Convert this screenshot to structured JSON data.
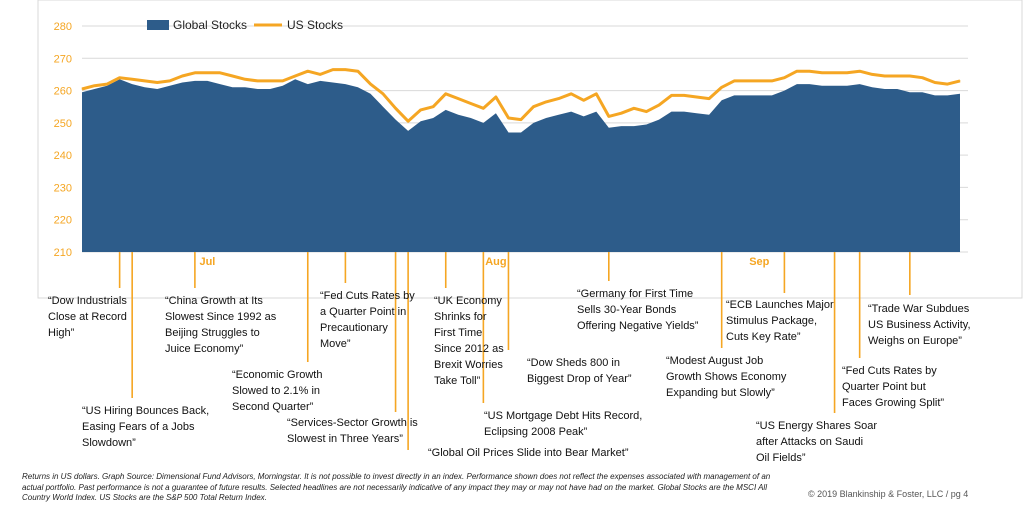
{
  "chart_data": {
    "type": "area",
    "ylim": [
      210,
      280
    ],
    "yticks": [
      210,
      220,
      230,
      240,
      250,
      260,
      270,
      280
    ],
    "grid": true,
    "legend_position": "top-left",
    "month_labels": [
      {
        "label": "Jul",
        "index": 10
      },
      {
        "label": "Aug",
        "index": 33
      },
      {
        "label": "Sep",
        "index": 54
      }
    ],
    "series": [
      {
        "name": "Global Stocks",
        "type": "area",
        "color": "#2D5C8A",
        "values": [
          259.5,
          260.5,
          261.5,
          263.5,
          262,
          261,
          260.5,
          261.5,
          262.5,
          263,
          263,
          262,
          261,
          261,
          260.5,
          260.5,
          261.5,
          263.5,
          262,
          263,
          262.5,
          262,
          261,
          259,
          255,
          251,
          247.5,
          250.5,
          251.5,
          254,
          252.5,
          251.5,
          250,
          253,
          247,
          247,
          250,
          251.5,
          252.5,
          253.5,
          252,
          253.5,
          248.5,
          249,
          249,
          249.5,
          251,
          253.5,
          253.5,
          253,
          252.5,
          257,
          258.5,
          258.5,
          258.5,
          258.5,
          260,
          262,
          262,
          261.5,
          261.5,
          261.5,
          262,
          261,
          260.5,
          260.5,
          259.5,
          259.5,
          258.5,
          258.5,
          259
        ]
      },
      {
        "name": "US Stocks",
        "type": "line",
        "color": "#F5A623",
        "values": [
          260.5,
          261.5,
          262,
          264,
          263.5,
          263,
          262.5,
          263,
          264.5,
          265.5,
          265.5,
          265.5,
          264.5,
          263.5,
          263,
          263,
          263,
          264.5,
          266,
          265,
          266.5,
          266.5,
          266,
          262,
          259,
          254.5,
          250.5,
          254,
          255,
          259,
          257.5,
          256,
          254.5,
          258,
          251.5,
          251,
          255,
          256.5,
          257.5,
          259,
          257,
          259,
          252,
          253,
          254.5,
          253.5,
          255.5,
          258.5,
          258.5,
          258,
          257.5,
          261,
          263,
          263,
          263,
          263,
          264,
          266,
          266,
          265.5,
          265.5,
          265.5,
          266,
          265,
          264.5,
          264.5,
          264.5,
          264,
          262.5,
          262,
          263
        ]
      }
    ],
    "annotations": [
      {
        "text": "“Dow Industrials\nClose at Record\nHigh”",
        "index": 3
      },
      {
        "text": "“US Hiring Bounces Back,\nEasing Fears of a Jobs\nSlowdown”",
        "index": 4
      },
      {
        "text": "“China Growth at Its\nSlowest Since 1992 as\nBeijing Struggles to\nJuice Economy”",
        "index": 9
      },
      {
        "text": "“Economic Growth\nSlowed to 2.1% in\nSecond Quarter”",
        "index": 18
      },
      {
        "text": "“Fed Cuts Rates by\na Quarter Point in\nPrecautionary\nMove”",
        "index": 21
      },
      {
        "text": "“Services-Sector Growth is\nSlowest in Three Years”",
        "index": 25
      },
      {
        "text": "“Global Oil Prices Slide into Bear Market”",
        "index": 26
      },
      {
        "text": "“UK Economy\nShrinks for\nFirst Time\nSince 2012 as\nBrexit Worries\nTake Toll”",
        "index": 29
      },
      {
        "text": "“US Mortgage Debt Hits Record,\nEclipsing 2008 Peak”",
        "index": 32
      },
      {
        "text": "“Dow Sheds 800 in\nBiggest Drop of Year”",
        "index": 34
      },
      {
        "text": "“Germany for First Time\nSells 30-Year Bonds\nOffering Negative Yields”",
        "index": 42
      },
      {
        "text": "“Modest August Job\nGrowth Shows Economy\nExpanding but Slowly”",
        "index": 51
      },
      {
        "text": "“ECB Launches Major\nStimulus Package,\nCuts Key Rate”",
        "index": 56
      },
      {
        "text": "“US Energy Shares Soar\nafter Attacks on Saudi\nOil Fields”",
        "index": 60
      },
      {
        "text": "“Fed Cuts Rates by\nQuarter Point but\nFaces Growing Split”",
        "index": 62
      },
      {
        "text": "“Trade War Subdues\nUS Business Activity,\nWeighs on Europe”",
        "index": 66
      }
    ]
  },
  "footnote": "Returns in US dollars. Graph Source: Dimensional Fund Advisors, Morningstar. It is not possible to invest directly in an index. Performance shown does not reflect the expenses associated with management of an actual portfolio. Past performance is not a guarantee of future results. Selected headlines are not necessarily indicative of any impact they may or may not have had on the market. Global Stocks are the MSCI All Country World Index. US Stocks are the S&P 500 Total Return Index.",
  "copyright": "© 2019 Blankinship & Foster, LLC / pg 4"
}
